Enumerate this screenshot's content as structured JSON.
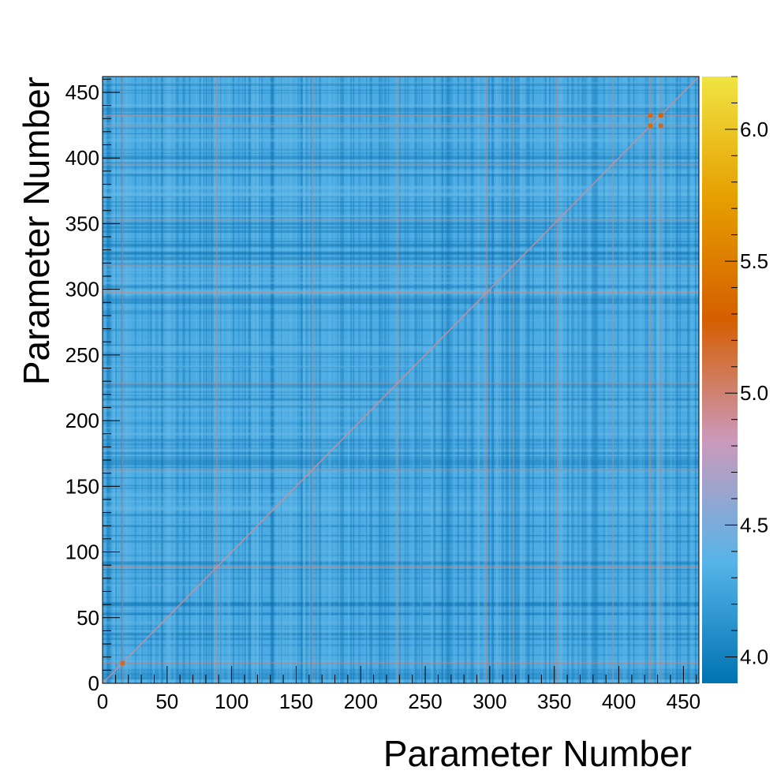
{
  "chart_data": {
    "type": "heatmap",
    "title": "",
    "xlabel": "Parameter Number",
    "ylabel": "Parameter Number",
    "xlim": [
      0,
      462
    ],
    "ylim": [
      0,
      462
    ],
    "x_ticks": [
      0,
      50,
      100,
      150,
      200,
      250,
      300,
      350,
      400,
      450
    ],
    "y_ticks": [
      0,
      50,
      100,
      150,
      200,
      250,
      300,
      350,
      400,
      450
    ],
    "x_tick_labels": [
      "0",
      "50",
      "100",
      "150",
      "200",
      "250",
      "300",
      "350",
      "400",
      "450"
    ],
    "y_tick_labels": [
      "0",
      "50",
      "100",
      "150",
      "200",
      "250",
      "300",
      "350",
      "400",
      "450"
    ],
    "colorbar": {
      "range": [
        3.9,
        6.2
      ],
      "ticks": [
        4.0,
        4.5,
        5.0,
        5.5,
        6.0
      ],
      "tick_labels": [
        "4.0",
        "4.5",
        "5.0",
        "5.5",
        "6.0"
      ],
      "palette": [
        "#0072b2",
        "#56b4e9",
        "#cc99bb",
        "#d55e00",
        "#e69f00",
        "#f0e442"
      ]
    },
    "background_value": 4.3,
    "diagonal_value": 4.9,
    "highlighted_parameters": [
      15,
      88,
      162,
      228,
      297,
      318,
      352,
      395,
      424,
      432
    ],
    "highlighted_value": 5.0,
    "hot_spots": [
      {
        "x": 424,
        "y": 424,
        "value": 5.4
      },
      {
        "x": 432,
        "y": 432,
        "value": 5.3
      },
      {
        "x": 424,
        "y": 432,
        "value": 5.2
      },
      {
        "x": 432,
        "y": 424,
        "value": 5.2
      },
      {
        "x": 15,
        "y": 15,
        "value": 5.2
      }
    ]
  }
}
